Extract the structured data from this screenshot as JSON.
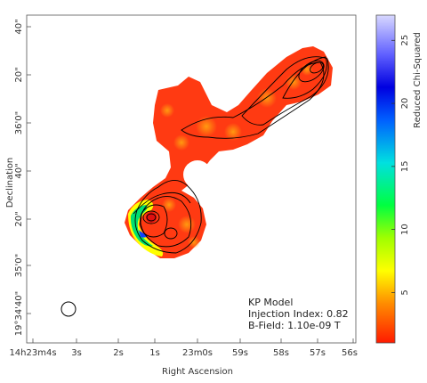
{
  "chart_data": {
    "type": "heatmap",
    "xlabel": "Right Ascension",
    "ylabel": "Declination",
    "colorbar_label": "Reduced Chi-Squared",
    "colorbar_ticks": [
      "5",
      "10",
      "15",
      "20",
      "25"
    ],
    "colorbar_values": [
      5,
      10,
      15,
      20,
      25
    ],
    "colorbar_range": [
      1,
      27
    ],
    "x_ticks": [
      "14h23m4s",
      "3s",
      "2s",
      "1s",
      "23m0s",
      "59s",
      "58s",
      "57s",
      "56s"
    ],
    "y_ticks": [
      "19°34'40\"",
      "35'0\"",
      "20\"",
      "40\"",
      "36'0\"",
      "20\"",
      "40\""
    ],
    "annotations": {
      "model": "KP Model",
      "injection": "Injection Index: 0.82",
      "bfield": "B-Field: 1.10e-09 T"
    }
  }
}
